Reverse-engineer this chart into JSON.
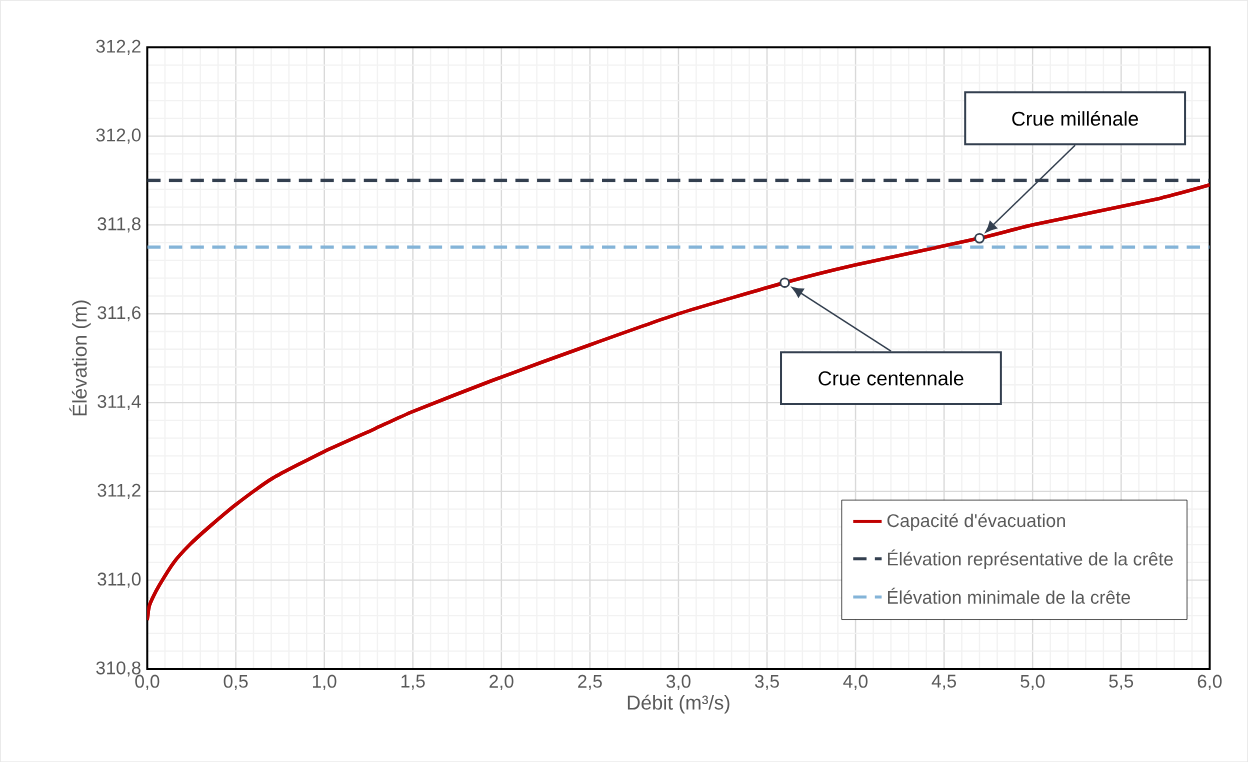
{
  "chart_data": {
    "type": "line",
    "xlabel": "Débit (m³/s)",
    "ylabel": "Élévation (m)",
    "xlim": [
      0,
      6
    ],
    "ylim": [
      310.8,
      312.2
    ],
    "xticks": [
      {
        "value": 0,
        "label": "0,0"
      },
      {
        "value": 0.5,
        "label": "0,5"
      },
      {
        "value": 1,
        "label": "1,0"
      },
      {
        "value": 1.5,
        "label": "1,5"
      },
      {
        "value": 2,
        "label": "2,0"
      },
      {
        "value": 2.5,
        "label": "2,5"
      },
      {
        "value": 3,
        "label": "3,0"
      },
      {
        "value": 3.5,
        "label": "3,5"
      },
      {
        "value": 4,
        "label": "4,0"
      },
      {
        "value": 4.5,
        "label": "4,5"
      },
      {
        "value": 5,
        "label": "5,0"
      },
      {
        "value": 5.5,
        "label": "5,5"
      },
      {
        "value": 6,
        "label": "6,0"
      }
    ],
    "yticks": [
      {
        "value": 310.8,
        "label": "310,8"
      },
      {
        "value": 311.0,
        "label": "311,0"
      },
      {
        "value": 311.2,
        "label": "311,2"
      },
      {
        "value": 311.4,
        "label": "311,4"
      },
      {
        "value": 311.6,
        "label": "311,6"
      },
      {
        "value": 311.8,
        "label": "311,8"
      },
      {
        "value": 312.0,
        "label": "312,0"
      },
      {
        "value": 312.2,
        "label": "312,2"
      }
    ],
    "series": [
      {
        "name": "Capacité d'évacuation",
        "color": "#c00000",
        "marker": "none",
        "x": [
          0,
          0.01,
          0.03,
          0.07,
          0.15,
          0.24,
          0.35,
          0.5,
          0.71,
          1.0,
          1.28,
          1.5,
          1.95,
          2.5,
          3.0,
          3.6,
          4.0,
          4.7,
          5.0,
          5.72,
          6.0
        ],
        "values": [
          310.91,
          310.94,
          310.96,
          310.99,
          311.04,
          311.08,
          311.12,
          311.17,
          311.23,
          311.29,
          311.34,
          311.38,
          311.45,
          311.53,
          311.6,
          311.67,
          311.71,
          311.77,
          311.8,
          311.86,
          311.89
        ]
      },
      {
        "type": "scatter",
        "color": "#333f4f",
        "marker": "circle",
        "x": [
          3.6,
          4.7
        ],
        "values": [
          311.67,
          311.77
        ]
      }
    ],
    "ref_lines": [
      {
        "axis": "y",
        "value": 311.9,
        "label": "Élévation représentative de la crête",
        "color": "#333f4f",
        "line_style": "dashed"
      },
      {
        "axis": "y",
        "value": 311.75,
        "label": "Élévation minimale de la crête",
        "color": "#84b4d8",
        "line_style": "dashed"
      }
    ],
    "annotations": [
      "Crue centennale",
      "Crue millénale"
    ],
    "grid": true,
    "legend": "bottom right"
  }
}
